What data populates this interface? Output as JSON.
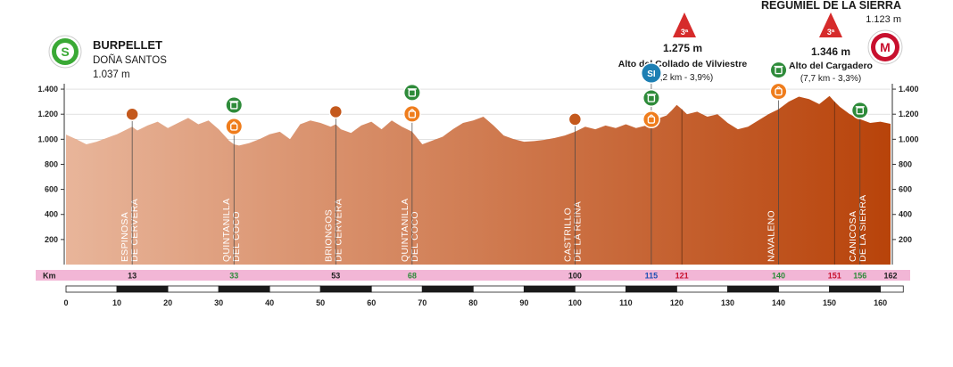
{
  "start": {
    "badge": "S",
    "name": "BURPELLET",
    "place": "DOÑA SANTOS",
    "alt": "1.037 m",
    "color": "#3aa935"
  },
  "finish": {
    "badge": "M",
    "name": "REGUMIEL DE LA SIERRA",
    "alt": "1.123 m",
    "color": "#c8102e"
  },
  "climbs": [
    {
      "category": "3ª",
      "alt": "1.275 m",
      "name": "Alto del Collado de Vilviestre",
      "detail": "(5,2 km - 3,9%)",
      "km": 121
    },
    {
      "category": "3ª",
      "alt": "1.346 m",
      "name": "Alto del Cargadero",
      "detail": "(7,7 km - 3,3%)",
      "km": 151
    }
  ],
  "sprint": {
    "label": "SI",
    "km": 115
  },
  "km_label": "Km",
  "colors": {
    "top": "#e8b59a",
    "bottom": "#b8430a",
    "km_bar": "#f2b6d6",
    "grid": "#cfcfcf"
  },
  "chart_data": {
    "type": "area",
    "xlim": [
      0,
      162
    ],
    "ylim": [
      0,
      1500
    ],
    "y_ticks": [
      200,
      400,
      600,
      800,
      1000,
      1200,
      1400
    ],
    "x_ticks": [
      0,
      10,
      20,
      30,
      40,
      50,
      60,
      70,
      80,
      90,
      100,
      110,
      120,
      130,
      140,
      150,
      160
    ],
    "x_tick_labels": [
      "0",
      "10",
      "20",
      "30",
      "40",
      "50",
      "60",
      "70",
      "80",
      "90",
      "100",
      "110",
      "120",
      "130",
      "140",
      "150",
      "160"
    ],
    "y_tick_labels": [
      "200",
      "400",
      "600",
      "800",
      "1.000",
      "1.200",
      "1.400"
    ],
    "x": [
      0,
      2,
      4,
      6,
      8,
      10,
      12,
      13,
      14,
      16,
      18,
      20,
      22,
      24,
      26,
      28,
      30,
      32,
      33,
      34,
      36,
      38,
      40,
      42,
      44,
      46,
      48,
      50,
      52,
      53,
      54,
      56,
      58,
      60,
      62,
      64,
      66,
      68,
      70,
      72,
      74,
      75,
      76,
      78,
      80,
      82,
      84,
      86,
      88,
      90,
      92,
      94,
      96,
      98,
      100,
      102,
      104,
      106,
      108,
      110,
      112,
      114,
      115,
      116,
      118,
      119,
      120,
      121,
      122,
      124,
      126,
      128,
      130,
      132,
      134,
      136,
      138,
      140,
      142,
      144,
      146,
      148,
      150,
      151,
      152,
      154,
      156,
      158,
      160,
      162
    ],
    "y": [
      1037,
      1000,
      960,
      980,
      1010,
      1040,
      1080,
      1100,
      1070,
      1110,
      1140,
      1090,
      1130,
      1170,
      1120,
      1150,
      1080,
      990,
      960,
      950,
      970,
      1000,
      1040,
      1060,
      1000,
      1120,
      1150,
      1130,
      1100,
      1120,
      1080,
      1050,
      1110,
      1140,
      1080,
      1150,
      1100,
      1060,
      960,
      990,
      1020,
      1050,
      1080,
      1130,
      1150,
      1180,
      1110,
      1030,
      1000,
      980,
      985,
      995,
      1010,
      1030,
      1060,
      1100,
      1080,
      1110,
      1090,
      1120,
      1090,
      1110,
      1130,
      1160,
      1190,
      1230,
      1275,
      1240,
      1200,
      1220,
      1180,
      1200,
      1130,
      1080,
      1100,
      1150,
      1200,
      1240,
      1300,
      1340,
      1320,
      1280,
      1346,
      1300,
      1260,
      1200,
      1160,
      1130,
      1140,
      1123
    ],
    "towns": [
      {
        "l1": "ESPINOSA",
        "l2": "DE CERVERA",
        "km": 13,
        "label": "13",
        "marker": "pin"
      },
      {
        "l1": "QUINTANILLA",
        "l2": "DEL COCO",
        "km": 33,
        "label": "33",
        "marker": "supply"
      },
      {
        "l1": "BRIONGOS",
        "l2": "DE CERVERA",
        "km": 53,
        "label": "53",
        "marker": "pin"
      },
      {
        "l1": "QUINTANILLA",
        "l2": "DEL COCO",
        "km": 68,
        "label": "68",
        "marker": "supply"
      },
      {
        "l1": "CASTRILLO",
        "l2": "DE LA REINA",
        "km": 100,
        "label": "100",
        "marker": "pin"
      },
      {
        "l1": "",
        "l2": "",
        "km": 115,
        "label": "115",
        "marker": "sprint"
      },
      {
        "l1": "",
        "l2": "",
        "km": 121,
        "label": "121",
        "marker": "climb"
      },
      {
        "l1": "NAVALENO",
        "l2": "",
        "km": 140,
        "label": "140",
        "marker": "supply"
      },
      {
        "l1": "",
        "l2": "",
        "km": 151,
        "label": "151",
        "marker": "climb"
      },
      {
        "l1": "CANICOSA",
        "l2": "DE LA SIERRA",
        "km": 156,
        "label": "156",
        "marker": "bin"
      },
      {
        "l1": "",
        "l2": "",
        "km": 162,
        "label": "162",
        "marker": "finish"
      }
    ]
  }
}
